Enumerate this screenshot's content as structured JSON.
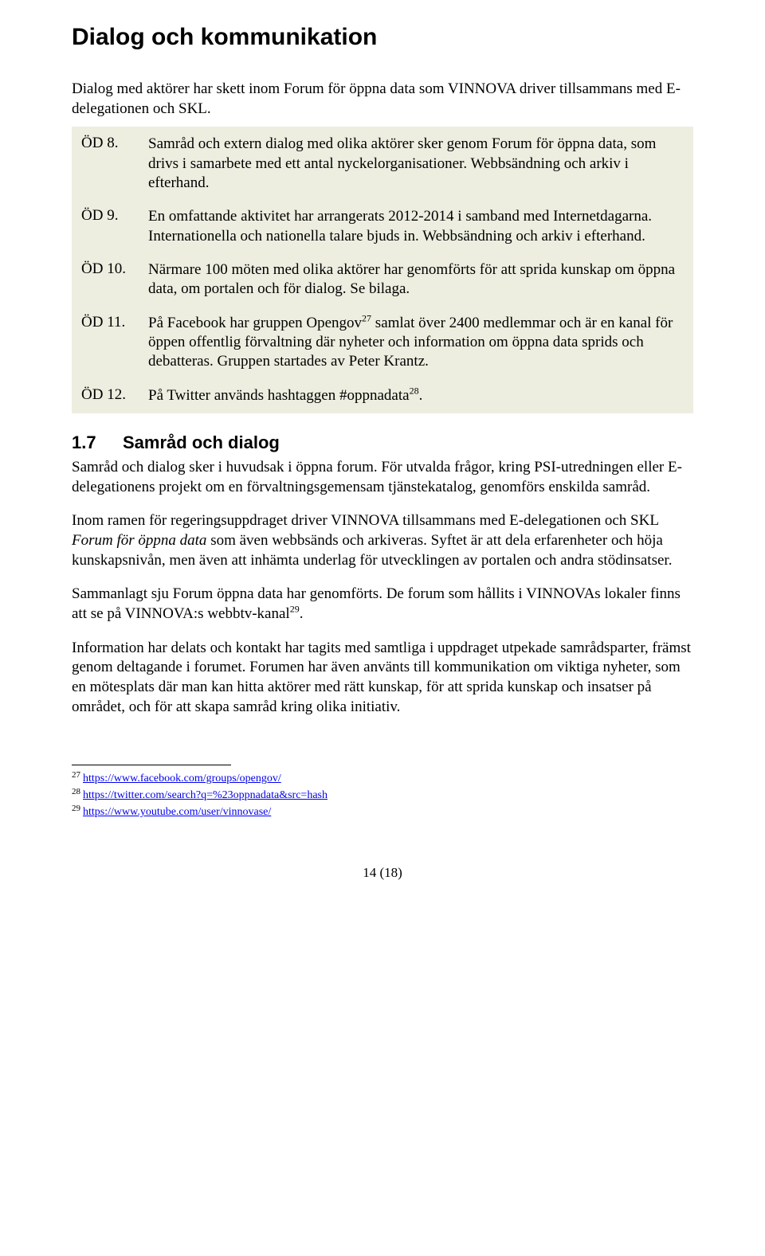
{
  "main_heading": "Dialog och kommunikation",
  "intro": "Dialog med aktörer har skett inom Forum för öppna data som VINNOVA driver tillsammans med E-delegationen och SKL.",
  "box_rows": [
    {
      "label": "ÖD 8.",
      "text": "Samråd och extern dialog med olika aktörer sker genom Forum för öppna data, som drivs i samarbete med ett antal nyckelorganisationer. Webbsändning och arkiv i efterhand."
    },
    {
      "label": "ÖD 9.",
      "text": "En omfattande aktivitet har arrangerats 2012-2014 i samband med Internetdagarna. Internationella och nationella talare bjuds in. Webbsändning och arkiv i efterhand."
    },
    {
      "label": "ÖD 10.",
      "text": "Närmare 100 möten med olika aktörer har genomförts för att sprida kunskap om öppna data, om portalen och för dialog. Se bilaga."
    },
    {
      "label": "ÖD 11.",
      "text_pre": "På Facebook har gruppen Opengov",
      "fn": "27",
      "text_post": " samlat över 2400 medlemmar och är en kanal för öppen offentlig förvaltning där nyheter och information om öppna data sprids och debatteras. Gruppen startades av Peter Krantz."
    },
    {
      "label": "ÖD 12.",
      "text_pre": "På Twitter används hashtaggen #oppnadata",
      "fn": "28",
      "text_post": "."
    }
  ],
  "section_num": "1.7",
  "section_title": "Samråd och dialog",
  "paras": {
    "p1": "Samråd och dialog sker i huvudsak i öppna forum. För utvalda frågor, kring PSI-utredningen eller E-delegationens projekt om en förvaltningsgemensam tjänstekatalog, genomförs enskilda samråd.",
    "p2_pre": "Inom ramen för regeringsuppdraget driver VINNOVA tillsammans med E-delegationen och SKL ",
    "p2_italic": "Forum för öppna data",
    "p2_post": " som även webbsänds och arkiveras. Syftet är att dela erfarenheter och höja kunskapsnivån, men även att inhämta underlag för utvecklingen av portalen och andra stödinsatser.",
    "p3_text": "Sammanlagt sju Forum öppna data har genomförts. De forum som hållits i VINNOVAs lokaler finns att se på VINNOVA:s webbtv-kanal",
    "p3_fn": "29",
    "p3_post": ".",
    "p4": "Information har delats och kontakt har tagits med samtliga i uppdraget utpekade samrådsparter, främst genom deltagande i forumet. Forumen har även använts till kommunikation om viktiga nyheter, som en mötesplats där man kan hitta aktörer med rätt kunskap, för att sprida kunskap och insatser på området, och för att skapa samråd kring olika initiativ."
  },
  "footnotes": [
    {
      "num": "27",
      "url": "https://www.facebook.com/groups/opengov/"
    },
    {
      "num": "28",
      "url": "https://twitter.com/search?q=%23oppnadata&src=hash"
    },
    {
      "num": "29",
      "url": "https://www.youtube.com/user/vinnovase/"
    }
  ],
  "page_number": "14 (18)"
}
